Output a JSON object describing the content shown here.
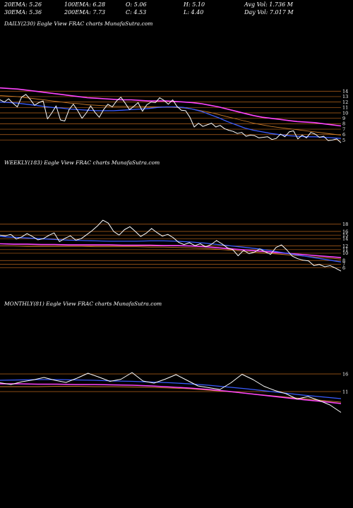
{
  "stats": {
    "ema20": "20EMA: 5.26",
    "ema100": "100EMA: 6.28",
    "open": "O: 5.06",
    "high": "H: 5.10",
    "avgvol": "Avg Vol: 1.736  M",
    "ema30": "30EMA: 5.36",
    "ema200": "200EMA: 7.73",
    "close": "C: 4.53",
    "low": "L: 4.40",
    "dayvol": "Day Vol: 7.017 M"
  },
  "colors": {
    "price": "#ffffff",
    "ma_pink": "#ff44ff",
    "ma_blue": "#3a5cff",
    "ma_orange": "#c87a28",
    "grid": "#b8651c"
  },
  "chart_data": [
    {
      "type": "line",
      "title": "DAILY(230) Eagle  View  FRAC charts MunafaSutra.com",
      "yticks": [
        14,
        13,
        12,
        11,
        10,
        9,
        8,
        7,
        6,
        5
      ],
      "ylim": [
        3.5,
        15.2
      ],
      "series": [
        {
          "role": "price",
          "values": [
            12.4,
            12.0,
            12.6,
            11.8,
            11.1,
            12.9,
            13.4,
            12.5,
            11.4,
            11.9,
            12.2,
            8.9,
            10.0,
            11.3,
            8.7,
            8.5,
            10.6,
            11.6,
            10.4,
            9.0,
            10.0,
            11.3,
            10.1,
            9.2,
            10.6,
            11.6,
            11.1,
            12.2,
            12.9,
            11.8,
            10.6,
            11.2,
            11.9,
            10.3,
            11.5,
            12.0,
            11.9,
            12.8,
            12.3,
            11.6,
            12.4,
            11.2,
            10.5,
            10.4,
            9.2,
            7.4,
            8.1,
            7.5,
            7.8,
            8.1,
            7.4,
            7.7,
            7.1,
            6.8,
            6.6,
            6.2,
            6.4,
            5.7,
            5.9,
            5.8,
            5.4,
            5.5,
            5.6,
            5.1,
            5.3,
            6.1,
            5.6,
            6.5,
            6.7,
            5.2,
            5.9,
            5.4,
            6.4,
            6.1,
            5.5,
            5.7,
            4.9,
            5.0,
            5.2,
            4.5
          ]
        },
        {
          "role": "ma_pink",
          "values": [
            14.6,
            14.5,
            14.4,
            14.2,
            14.0,
            13.8,
            13.6,
            13.4,
            13.2,
            13.0,
            12.8,
            12.7,
            12.6,
            12.5,
            12.4,
            12.4,
            12.3,
            12.2,
            12.2,
            12.2,
            12.1,
            12.0,
            11.9,
            11.7,
            11.4,
            11.1,
            10.7,
            10.3,
            9.9,
            9.5,
            9.2,
            9.0,
            8.8,
            8.6,
            8.4,
            8.3,
            8.2,
            8.0,
            7.8,
            7.6
          ]
        },
        {
          "role": "ma_blue",
          "values": [
            12.0,
            11.9,
            11.8,
            11.6,
            11.4,
            11.2,
            11.0,
            10.9,
            10.7,
            10.6,
            10.5,
            10.4,
            10.4,
            10.4,
            10.5,
            10.6,
            10.7,
            10.8,
            11.0,
            11.1,
            11.1,
            11.0,
            10.7,
            10.3,
            9.7,
            9.1,
            8.4,
            7.8,
            7.2,
            6.8,
            6.5,
            6.2,
            6.0,
            5.8,
            5.7,
            5.6,
            5.6,
            5.5,
            5.4,
            5.3
          ]
        },
        {
          "role": "ma_orange",
          "values": [
            13.2,
            13.1,
            13.0,
            12.8,
            12.6,
            12.4,
            12.2,
            12.0,
            11.8,
            11.7,
            11.5,
            11.4,
            11.3,
            11.2,
            11.2,
            11.2,
            11.2,
            11.1,
            11.1,
            11.1,
            11.0,
            10.9,
            10.7,
            10.4,
            10.1,
            9.7,
            9.3,
            8.9,
            8.5,
            8.1,
            7.8,
            7.5,
            7.3,
            7.1,
            6.9,
            6.7,
            6.5,
            6.3,
            6.1,
            5.9
          ]
        }
      ]
    },
    {
      "type": "line",
      "title": "WEEKLY(183) Eagle  View  FRAC charts MunafaSutra.com",
      "yticks": [
        18,
        16,
        15,
        14,
        12,
        11,
        10,
        8,
        7,
        6
      ],
      "ylim": [
        3.0,
        19.5
      ],
      "series": [
        {
          "role": "price",
          "values": [
            15.0,
            14.8,
            15.2,
            13.9,
            14.5,
            15.4,
            14.6,
            13.7,
            14.0,
            14.9,
            15.6,
            13.2,
            14.1,
            14.8,
            13.6,
            14.0,
            15.1,
            16.2,
            17.5,
            19.1,
            18.3,
            16.0,
            15.0,
            16.5,
            17.3,
            16.0,
            14.6,
            15.5,
            16.8,
            15.7,
            14.7,
            15.2,
            14.3,
            13.0,
            12.4,
            12.9,
            12.1,
            12.6,
            11.8,
            12.4,
            13.5,
            12.6,
            11.5,
            11.0,
            9.3,
            10.8,
            9.9,
            10.3,
            11.2,
            10.4,
            9.7,
            11.6,
            12.3,
            10.9,
            9.2,
            8.5,
            8.1,
            7.9,
            6.6,
            6.9,
            6.3,
            6.6,
            5.9,
            5.1
          ]
        },
        {
          "role": "ma_pink",
          "values": [
            12.6,
            12.5,
            12.5,
            12.4,
            12.4,
            12.3,
            12.3,
            12.3,
            12.3,
            12.2,
            12.2,
            12.2,
            12.1,
            12.1,
            12.0,
            11.8,
            11.5,
            11.2,
            10.9,
            10.6,
            10.3,
            10.0,
            9.7,
            9.4,
            9.1,
            8.8
          ]
        },
        {
          "role": "ma_blue",
          "values": [
            14.6,
            14.4,
            14.2,
            14.0,
            13.8,
            13.6,
            13.5,
            13.4,
            13.3,
            13.3,
            13.3,
            13.4,
            13.4,
            13.3,
            13.1,
            12.8,
            12.4,
            12.0,
            11.6,
            11.2,
            10.6,
            10.0,
            9.4,
            8.8,
            8.2,
            7.6
          ]
        },
        {
          "role": "ma_orange",
          "values": [
            12.0,
            12.0,
            11.9,
            11.9,
            11.9,
            11.9,
            11.9,
            11.8,
            11.8,
            11.8,
            11.8,
            11.7,
            11.7,
            11.6,
            11.5,
            11.3,
            11.1,
            10.8,
            10.5,
            10.2,
            9.9,
            9.6,
            9.3,
            9.0,
            8.7,
            8.4
          ]
        }
      ]
    },
    {
      "type": "line",
      "title": "MONTHLY(81) Eagle  View  FRAC charts MunafaSutra.com",
      "yticks": [
        16,
        11
      ],
      "ylim": [
        3.0,
        19.0
      ],
      "series": [
        {
          "role": "price",
          "values": [
            13.5,
            13.0,
            13.8,
            14.3,
            15.0,
            14.2,
            13.6,
            14.8,
            16.2,
            15.1,
            13.9,
            14.5,
            16.4,
            14.0,
            13.4,
            14.5,
            15.8,
            14.2,
            12.6,
            12.1,
            11.6,
            13.5,
            15.9,
            14.4,
            12.5,
            11.3,
            10.4,
            8.9,
            9.6,
            8.5,
            7.2,
            5.1
          ]
        },
        {
          "role": "ma_pink",
          "values": [
            13.2,
            13.2,
            13.1,
            13.1,
            13.0,
            13.0,
            12.9,
            12.8,
            12.6,
            12.3,
            12.0,
            11.6,
            11.1,
            10.5,
            9.9,
            9.3,
            8.7,
            8.2,
            7.6
          ]
        },
        {
          "role": "ma_blue",
          "values": [
            14.2,
            14.3,
            14.4,
            14.4,
            14.3,
            14.2,
            14.0,
            13.9,
            13.7,
            13.5,
            13.2,
            12.8,
            12.3,
            11.8,
            11.2,
            10.6,
            10.0,
            9.5,
            9.0
          ]
        },
        {
          "role": "ma_orange",
          "values": [
            12.4,
            12.4,
            12.4,
            12.5,
            12.5,
            12.4,
            12.4,
            12.3,
            12.2,
            12.0,
            11.8,
            11.4,
            11.0,
            10.5,
            10.0,
            9.5,
            9.0,
            8.5,
            8.0
          ]
        }
      ]
    }
  ]
}
